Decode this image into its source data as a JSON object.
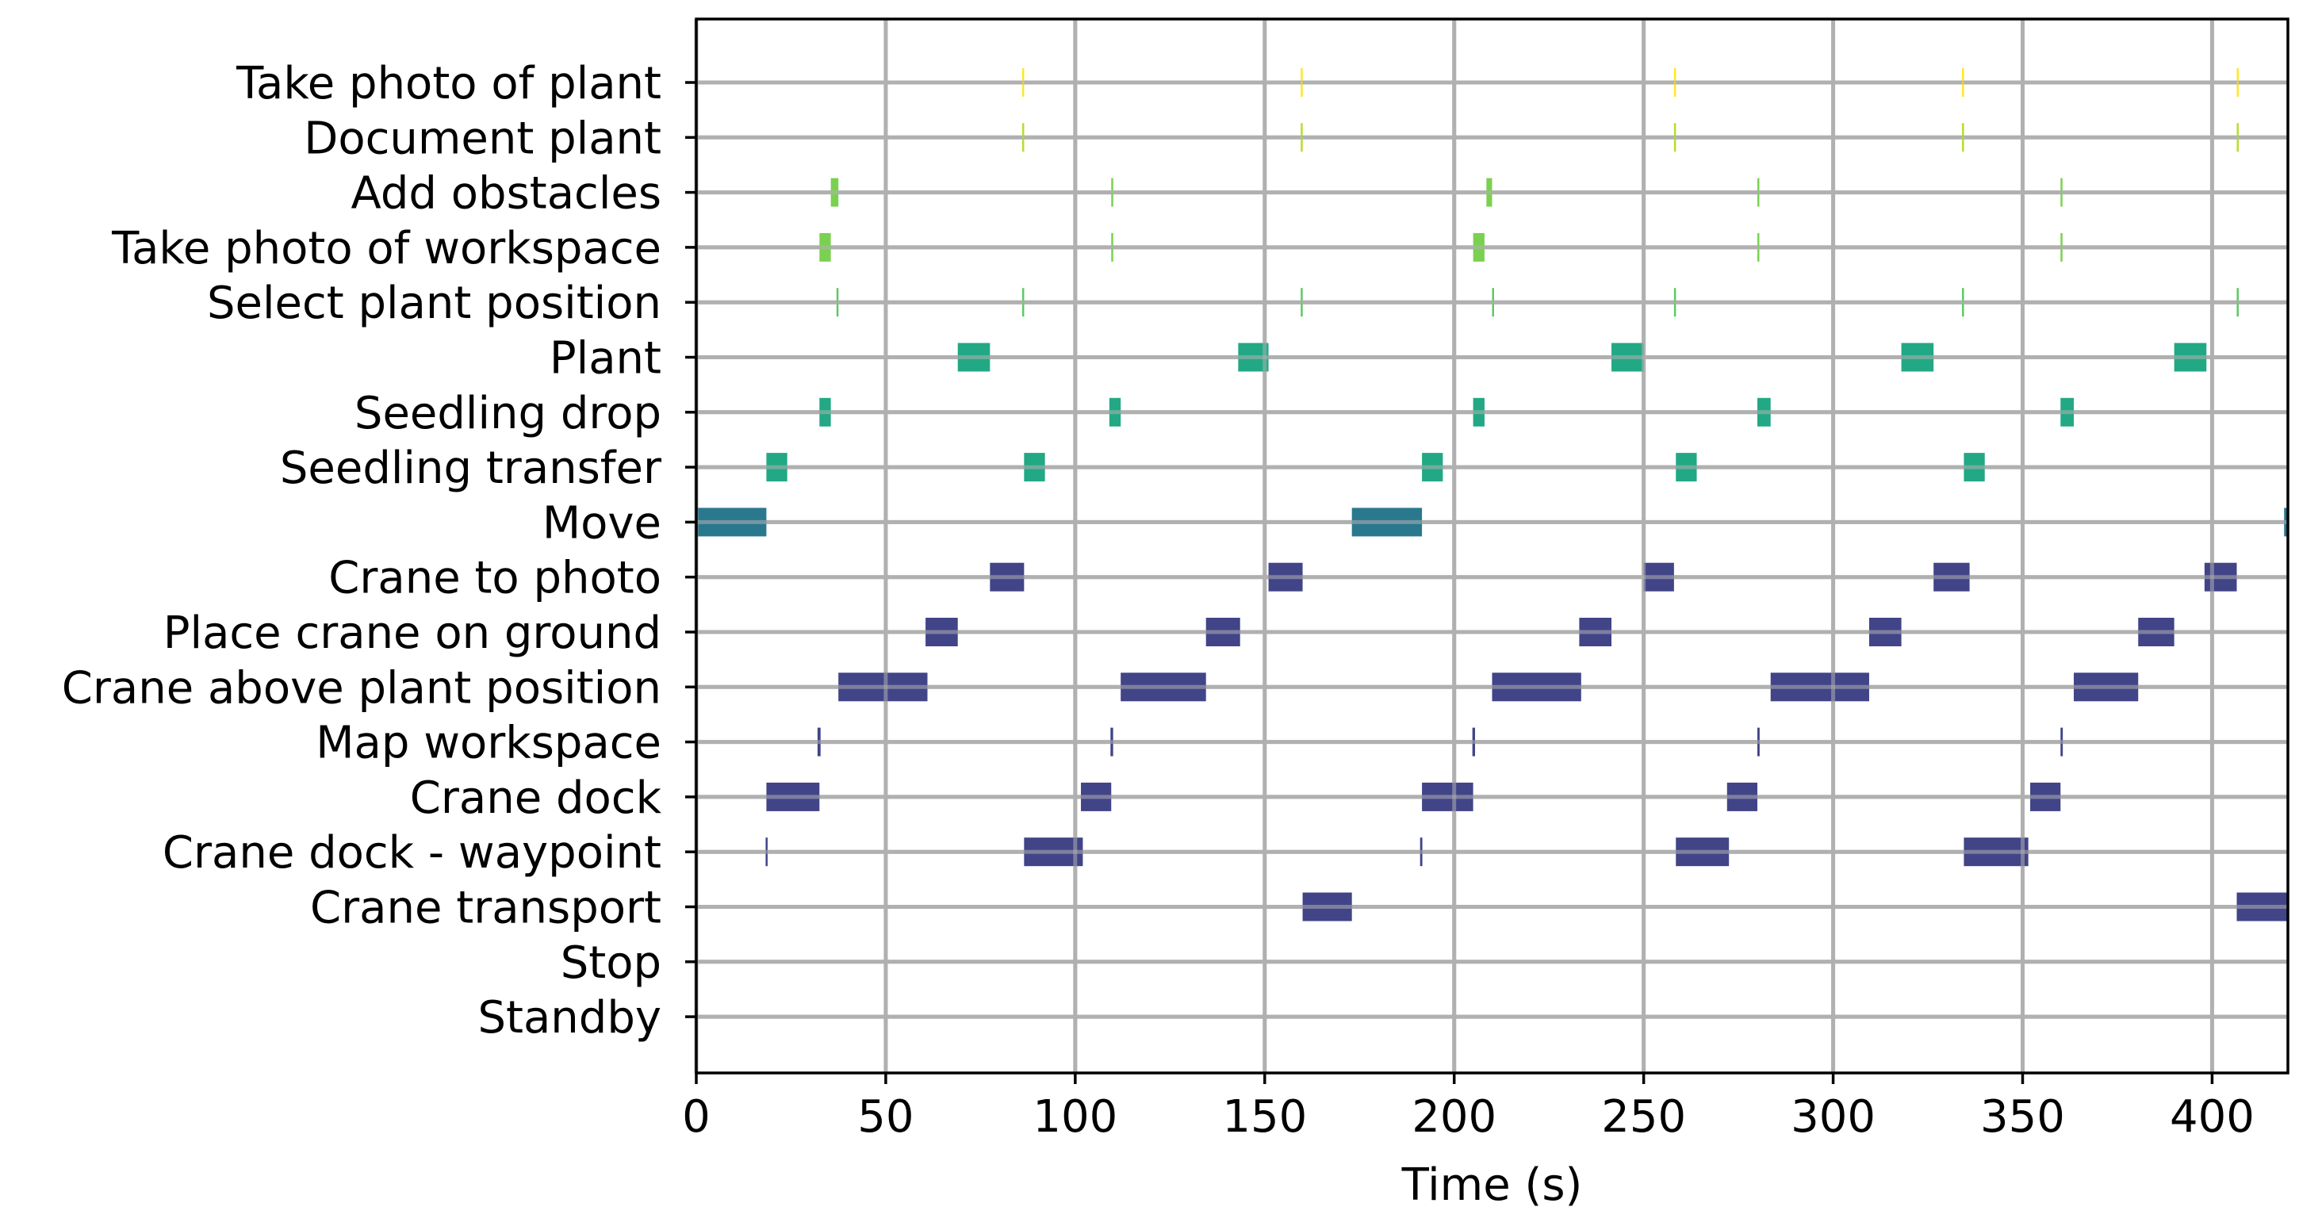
{
  "chart_data": {
    "type": "gantt",
    "xlabel": "Time (s)",
    "ylabel": "",
    "title": "",
    "xlim": [
      0,
      420
    ],
    "xticks": [
      0,
      50,
      100,
      150,
      200,
      250,
      300,
      350,
      400
    ],
    "grid": true,
    "categories": [
      "Take photo of plant",
      "Document plant",
      "Add obstacles",
      "Take photo of workspace",
      "Select plant position",
      "Plant",
      "Seedling drop",
      "Seedling transfer",
      "Move",
      "Crane to photo",
      "Place crane on ground",
      "Crane above plant position",
      "Map workspace",
      "Crane dock",
      "Crane dock - waypoint",
      "Crane transport",
      "Stop",
      "Standby"
    ],
    "series": [
      {
        "category": "Take photo of plant",
        "color": "#fde725",
        "segments": [
          [
            86.0,
            86.5
          ],
          [
            159.5,
            160.0
          ],
          [
            258.0,
            258.5
          ],
          [
            334.0,
            334.5
          ],
          [
            406.5,
            407.0
          ]
        ]
      },
      {
        "category": "Document plant",
        "color": "#b5de2b",
        "segments": [
          [
            86.0,
            86.5
          ],
          [
            159.5,
            160.0
          ],
          [
            258.0,
            258.5
          ],
          [
            334.0,
            334.5
          ],
          [
            406.5,
            407.0
          ]
        ]
      },
      {
        "category": "Add obstacles",
        "color": "#7ad151",
        "segments": [
          [
            35.5,
            37.5
          ],
          [
            109.5,
            110.0
          ],
          [
            208.5,
            210.0
          ],
          [
            280.0,
            280.5
          ],
          [
            360.0,
            360.5
          ]
        ]
      },
      {
        "category": "Take photo of workspace",
        "color": "#7ad151",
        "segments": [
          [
            32.5,
            35.5
          ],
          [
            109.5,
            110.0
          ],
          [
            205.0,
            208.0
          ],
          [
            280.0,
            280.5
          ],
          [
            360.0,
            360.5
          ]
        ]
      },
      {
        "category": "Select plant position",
        "color": "#5ec962",
        "segments": [
          [
            37.0,
            37.5
          ],
          [
            86.0,
            86.5
          ],
          [
            159.5,
            160.0
          ],
          [
            210.0,
            210.5
          ],
          [
            258.0,
            258.5
          ],
          [
            334.0,
            334.5
          ],
          [
            406.5,
            407.0
          ]
        ]
      },
      {
        "category": "Plant",
        "color": "#22a884",
        "segments": [
          [
            69.0,
            77.5
          ],
          [
            143.0,
            151.0
          ],
          [
            241.5,
            250.0
          ],
          [
            318.0,
            326.5
          ],
          [
            390.0,
            398.5
          ]
        ]
      },
      {
        "category": "Seedling drop",
        "color": "#22a884",
        "segments": [
          [
            32.5,
            35.5
          ],
          [
            109.0,
            112.0
          ],
          [
            205.0,
            208.0
          ],
          [
            280.0,
            283.5
          ],
          [
            360.0,
            363.5
          ]
        ]
      },
      {
        "category": "Seedling transfer",
        "color": "#22a884",
        "segments": [
          [
            18.5,
            24.0
          ],
          [
            86.5,
            92.0
          ],
          [
            191.5,
            197.0
          ],
          [
            258.5,
            264.0
          ],
          [
            334.5,
            340.0
          ]
        ]
      },
      {
        "category": "Move",
        "color": "#2a788e",
        "segments": [
          [
            0.0,
            18.5
          ],
          [
            173.0,
            191.5
          ],
          [
            419.0,
            420.0
          ]
        ]
      },
      {
        "category": "Crane to photo",
        "color": "#414487",
        "segments": [
          [
            77.5,
            86.5
          ],
          [
            151.0,
            160.0
          ],
          [
            250.0,
            258.0
          ],
          [
            326.5,
            336.0
          ],
          [
            398.0,
            406.5
          ]
        ]
      },
      {
        "category": "Place crane on ground",
        "color": "#414487",
        "segments": [
          [
            60.5,
            69.0
          ],
          [
            134.5,
            143.5
          ],
          [
            233.0,
            241.5
          ],
          [
            309.5,
            318.0
          ],
          [
            380.5,
            390.0
          ]
        ]
      },
      {
        "category": "Crane above plant position",
        "color": "#414487",
        "segments": [
          [
            37.5,
            61.0
          ],
          [
            112.0,
            134.5
          ],
          [
            210.0,
            233.5
          ],
          [
            283.5,
            309.5
          ],
          [
            363.5,
            380.5
          ]
        ]
      },
      {
        "category": "Map workspace",
        "color": "#414487",
        "segments": [
          [
            32.0,
            32.8
          ],
          [
            109.3,
            110.0
          ],
          [
            204.8,
            205.5
          ],
          [
            280.0,
            280.6
          ],
          [
            360.0,
            360.6
          ]
        ]
      },
      {
        "category": "Crane dock",
        "color": "#414487",
        "segments": [
          [
            18.5,
            32.5
          ],
          [
            101.5,
            109.5
          ],
          [
            191.5,
            205.0
          ],
          [
            272.0,
            280.0
          ],
          [
            352.0,
            360.0
          ]
        ]
      },
      {
        "category": "Crane dock - waypoint",
        "color": "#414487",
        "segments": [
          [
            18.3,
            18.8
          ],
          [
            86.5,
            102.0
          ],
          [
            191.0,
            191.6
          ],
          [
            258.5,
            272.5
          ],
          [
            334.5,
            351.5
          ]
        ]
      },
      {
        "category": "Crane transport",
        "color": "#414487",
        "segments": [
          [
            160.0,
            173.0
          ],
          [
            406.5,
            420.0
          ]
        ]
      },
      {
        "category": "Stop",
        "color": "#440154",
        "segments": []
      },
      {
        "category": "Standby",
        "color": "#440154",
        "segments": []
      }
    ]
  }
}
